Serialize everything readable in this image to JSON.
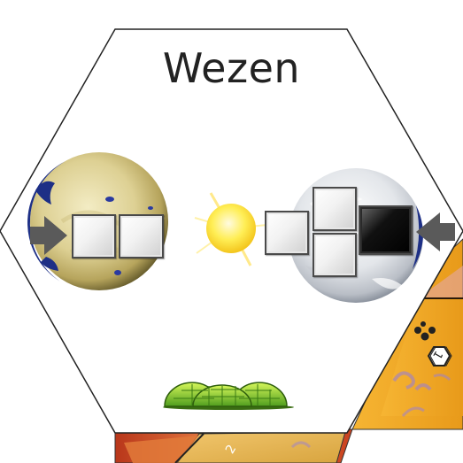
{
  "system": {
    "name": "Wezen",
    "star_color": "yellow",
    "left_planet": {
      "type": "desert-planet",
      "slots": [
        "light",
        "light"
      ],
      "arrow": "incoming-arrow-left"
    },
    "right_planet": {
      "type": "ice-planet",
      "slots": [
        "light",
        "light",
        "light",
        "dark"
      ],
      "arrow": "incoming-arrow-right"
    },
    "habitat": "green-domes"
  },
  "neighbor_tiles": {
    "right_tile_marker": "1",
    "bottom_tile_marker": "2"
  },
  "colors": {
    "hex_border": "#222222",
    "tile_orange": "#f1a322",
    "tile_red": "#d94a1c",
    "tile_gold": "#f2c25a",
    "slot_dark": "#000000",
    "arrow_gray": "#555555"
  }
}
